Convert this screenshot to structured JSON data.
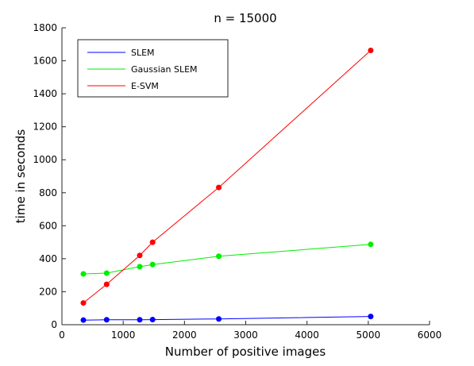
{
  "chart_data": {
    "type": "line",
    "title": "n = 15000",
    "xlabel": "Number of positive images",
    "ylabel": "time in seconds",
    "xlim": [
      0,
      6000
    ],
    "ylim": [
      0,
      1800
    ],
    "xticks": [
      0,
      1000,
      2000,
      3000,
      4000,
      5000,
      6000
    ],
    "yticks": [
      0,
      200,
      400,
      600,
      800,
      1000,
      1200,
      1400,
      1600,
      1800
    ],
    "grid": false,
    "legend": "top-left",
    "series": [
      {
        "name": "SLEM",
        "color": "#0000ff",
        "x": [
          350,
          730,
          1270,
          1480,
          2560,
          5040
        ],
        "y": [
          28,
          30,
          30,
          31,
          35,
          50
        ]
      },
      {
        "name": "Gaussian SLEM",
        "color": "#00ee00",
        "x": [
          350,
          730,
          1270,
          1480,
          2560,
          5040
        ],
        "y": [
          308,
          313,
          352,
          365,
          415,
          487
        ]
      },
      {
        "name": "E-SVM",
        "color": "#ff0000",
        "x": [
          350,
          730,
          1270,
          1480,
          2560,
          5040
        ],
        "y": [
          132,
          245,
          420,
          500,
          832,
          1663
        ]
      }
    ]
  }
}
